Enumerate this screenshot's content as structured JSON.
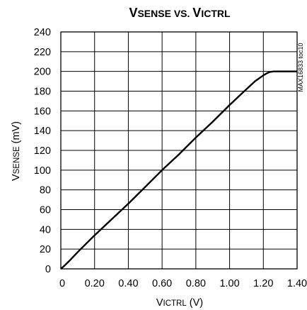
{
  "chart_data": {
    "type": "line",
    "title": {
      "parts": [
        {
          "text": "V",
          "size": "big"
        },
        {
          "text": "SENSE",
          "size": "small"
        },
        {
          "text": " VS. ",
          "size": "small"
        },
        {
          "text": "V",
          "size": "big"
        },
        {
          "text": "ICTRL",
          "size": "small"
        }
      ]
    },
    "xlabel": {
      "main": "V",
      "sub": "ICTRL",
      "unit": " (V)"
    },
    "ylabel": {
      "main": "V",
      "sub": "SENSE",
      "unit": " (mV)"
    },
    "xlim": [
      0,
      1.4
    ],
    "ylim": [
      0,
      240
    ],
    "x_ticks": [
      "0",
      "0.20",
      "0.40",
      "0.60",
      "0.80",
      "1.00",
      "1.20",
      "1.40"
    ],
    "y_ticks": [
      "0",
      "20",
      "40",
      "60",
      "80",
      "100",
      "120",
      "140",
      "160",
      "180",
      "200",
      "220",
      "240"
    ],
    "grid": true,
    "annotation": "MAX16833 toc10",
    "series": [
      {
        "color": "#000000",
        "x": [
          0,
          0.02,
          0.05,
          0.1,
          0.2,
          0.3,
          0.4,
          0.5,
          0.6,
          0.7,
          0.8,
          0.9,
          1.0,
          1.1,
          1.15,
          1.2,
          1.22,
          1.24,
          1.26,
          1.3,
          1.4
        ],
        "y": [
          0,
          3,
          8,
          17,
          34,
          50,
          66,
          83,
          100,
          116,
          133,
          149,
          166,
          182,
          190,
          196,
          198,
          199.5,
          200,
          200,
          200
        ]
      }
    ]
  }
}
